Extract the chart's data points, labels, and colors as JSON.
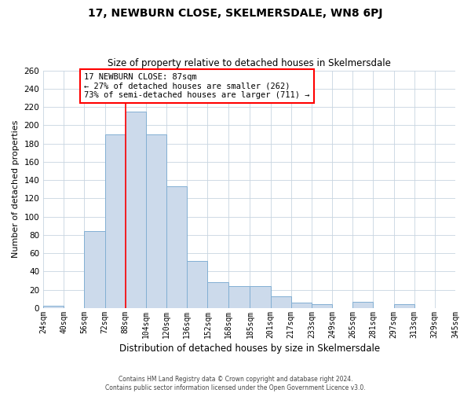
{
  "title": "17, NEWBURN CLOSE, SKELMERSDALE, WN8 6PJ",
  "subtitle": "Size of property relative to detached houses in Skelmersdale",
  "xlabel": "Distribution of detached houses by size in Skelmersdale",
  "ylabel": "Number of detached properties",
  "footer_line1": "Contains HM Land Registry data © Crown copyright and database right 2024.",
  "footer_line2": "Contains public sector information licensed under the Open Government Licence v3.0.",
  "bin_labels": [
    "24sqm",
    "40sqm",
    "56sqm",
    "72sqm",
    "88sqm",
    "104sqm",
    "120sqm",
    "136sqm",
    "152sqm",
    "168sqm",
    "185sqm",
    "201sqm",
    "217sqm",
    "233sqm",
    "249sqm",
    "265sqm",
    "281sqm",
    "297sqm",
    "313sqm",
    "329sqm",
    "345sqm"
  ],
  "bar_values": [
    3,
    0,
    84,
    190,
    215,
    190,
    133,
    52,
    28,
    24,
    24,
    13,
    6,
    4,
    0,
    7,
    0,
    4,
    0,
    0
  ],
  "bar_color": "#ccdaeb",
  "bar_edgecolor": "#82afd3",
  "vline_color": "red",
  "vline_x": 88,
  "marker_label_line1": "17 NEWBURN CLOSE: 87sqm",
  "marker_label_line2": "← 27% of detached houses are smaller (262)",
  "marker_label_line3": "73% of semi-detached houses are larger (711) →",
  "annotation_box_edgecolor": "red",
  "ylim": [
    0,
    260
  ],
  "yticks": [
    0,
    20,
    40,
    60,
    80,
    100,
    120,
    140,
    160,
    180,
    200,
    220,
    240,
    260
  ],
  "bin_edges": [
    24,
    40,
    56,
    72,
    88,
    104,
    120,
    136,
    152,
    168,
    185,
    201,
    217,
    233,
    249,
    265,
    281,
    297,
    313,
    329,
    345
  ]
}
